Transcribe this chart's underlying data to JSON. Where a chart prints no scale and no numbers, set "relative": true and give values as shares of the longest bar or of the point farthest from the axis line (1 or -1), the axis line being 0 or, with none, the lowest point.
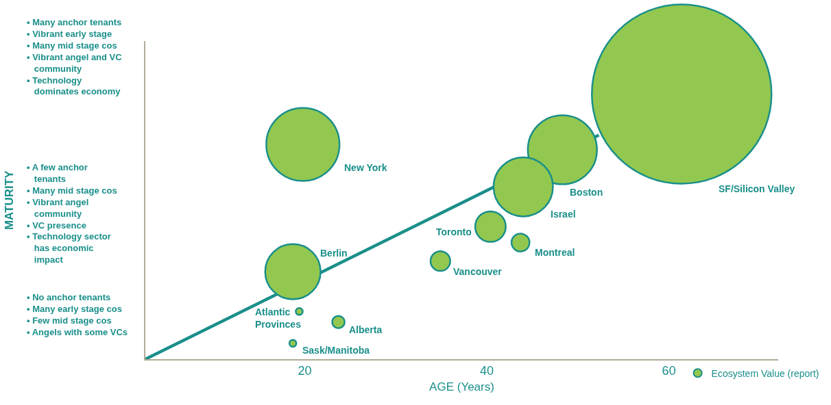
{
  "chart_data": {
    "type": "bubble",
    "relative": true,
    "xlabel": "AGE (Years)",
    "xlim": [
      2.5,
      72
    ],
    "xticks": [
      20,
      40,
      60
    ],
    "legend": "bottom right",
    "grid": false,
    "x": [
      19.8,
      48.3,
      44.0,
      61.4,
      40.4,
      43.7,
      34.9,
      18.7,
      19.4,
      23.7,
      18.7
    ],
    "series": [
      {
        "name": "Ecosystem Value (report)",
        "color": "#92c84f",
        "values": [
          0.81,
          0.79,
          0.65,
          1,
          0.5,
          0.44,
          0.37,
          0.33,
          0.18,
          0.14,
          0.06
        ],
        "sizes": [
          0.166,
          0.148,
          0.109,
          1,
          0.029,
          0.01,
          0.012,
          0.095,
          0.0015,
          0.0048,
          0.0015
        ]
      },
      {
        "type": "line",
        "color": "#1a8f8a",
        "x": [
          2.5,
          52.3
        ],
        "values": [
          0,
          0.845
        ]
      }
    ],
    "annotations": [
      "New York",
      "Boston",
      "Israel",
      "SF/Silicon Valley",
      "Toronto",
      "Montreal",
      "Vancouver",
      "Berlin",
      "Atlantic\nProvinces",
      "Alberta",
      "Sask/Manitoba",
      "MATURITY",
      "• Many anchor tenants\n• Vibrant early stage\n• Many mid stage cos\n• Vibrant angel and VC\n   community\n• Technology\n   dominates economy",
      "• A few anchor\n   tenants\n• Many mid stage cos\n• Vibrant angel\n   community\n• VC presence\n• Technology sector\n   has economic\n   impact",
      "• No anchor tenants\n• Many early stage cos\n• Few mid stage cos\n• Angels with some VCs"
    ]
  }
}
